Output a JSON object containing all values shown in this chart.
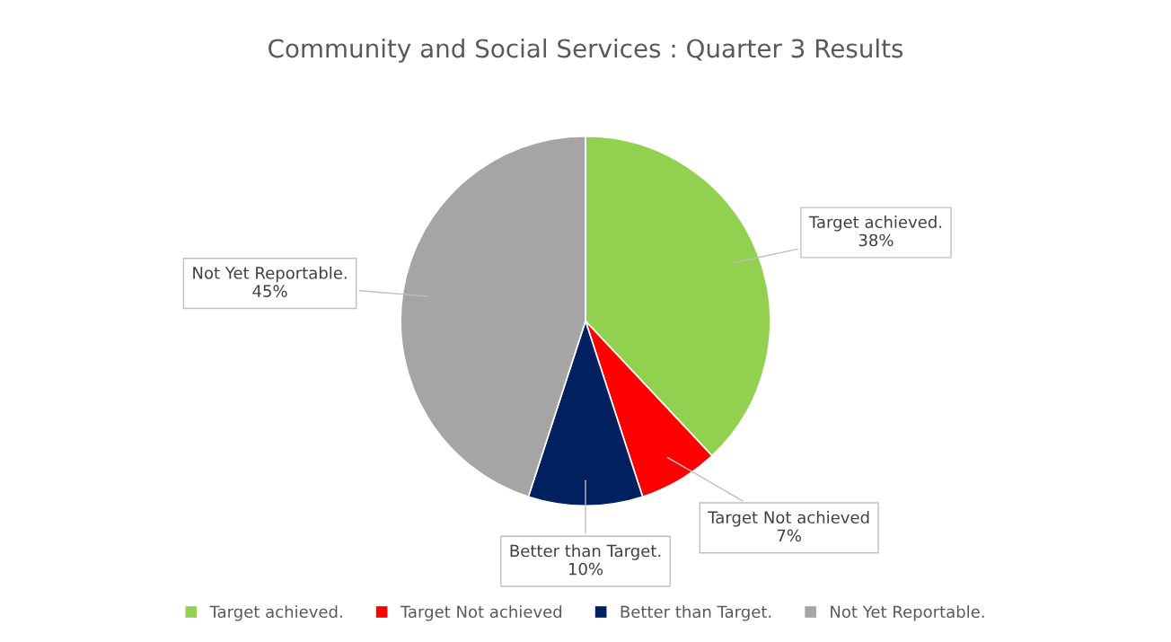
{
  "chart_data": {
    "type": "pie",
    "title": "Community and Social Services : Quarter 3 Results",
    "categories": [
      "Target achieved.",
      "Target Not achieved",
      "Better than Target.",
      "Not Yet Reportable."
    ],
    "values": [
      38,
      7,
      10,
      45
    ],
    "colors": [
      "#92d050",
      "#ff0000",
      "#002060",
      "#a5a5a5"
    ],
    "value_labels": [
      "38%",
      "7%",
      "10%",
      "45%"
    ],
    "legend": "bottom"
  }
}
